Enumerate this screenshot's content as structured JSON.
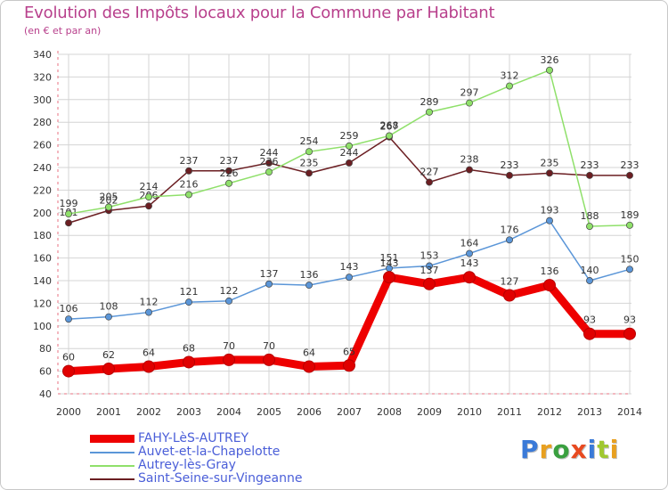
{
  "title": "Evolution des Impôts locaux pour la Commune par Habitant",
  "subtitle": "(en € et par an)",
  "brand": {
    "text": "Proxiti",
    "letter_colors": [
      "#3a7ad8",
      "#e8a020",
      "#3aa040",
      "#e84a20",
      "#3a7ad8",
      "#a0c830",
      "#e8a020"
    ]
  },
  "chart_data": {
    "type": "line",
    "x": [
      "2000",
      "2001",
      "2002",
      "2003",
      "2004",
      "2005",
      "2006",
      "2007",
      "2008",
      "2009",
      "2010",
      "2011",
      "2012",
      "2013",
      "2014"
    ],
    "ylim": [
      40,
      340
    ],
    "yticks": [
      40,
      60,
      80,
      100,
      120,
      140,
      160,
      180,
      200,
      220,
      240,
      260,
      280,
      300,
      320,
      340
    ],
    "grid": true,
    "legend_position": "bottom-left",
    "series": [
      {
        "name": "Saint-Seine-sur-Vingeanne",
        "color": "#6b1e22",
        "values": [
          191,
          202,
          206,
          237,
          237,
          244,
          235,
          244,
          267,
          227,
          238,
          233,
          235,
          233,
          233
        ]
      },
      {
        "name": "Autrey-lès-Gray",
        "color": "#8fe06a",
        "values": [
          199,
          205,
          214,
          216,
          226,
          236,
          254,
          259,
          268,
          289,
          297,
          312,
          326,
          188,
          189
        ]
      },
      {
        "name": "Auvet-et-la-Chapelotte",
        "color": "#5b96d8",
        "values": [
          106,
          108,
          112,
          121,
          122,
          137,
          136,
          143,
          151,
          153,
          164,
          176,
          193,
          140,
          150
        ]
      },
      {
        "name": "FAHY-LèS-AUTREY",
        "color": "#ee0000",
        "values": [
          60,
          62,
          64,
          68,
          70,
          70,
          64,
          65,
          143,
          137,
          143,
          127,
          136,
          93,
          93
        ]
      }
    ],
    "legend_order": [
      "FAHY-LèS-AUTREY",
      "Auvet-et-la-Chapelotte",
      "Autrey-lès-Gray",
      "Saint-Seine-sur-Vingeanne"
    ]
  }
}
